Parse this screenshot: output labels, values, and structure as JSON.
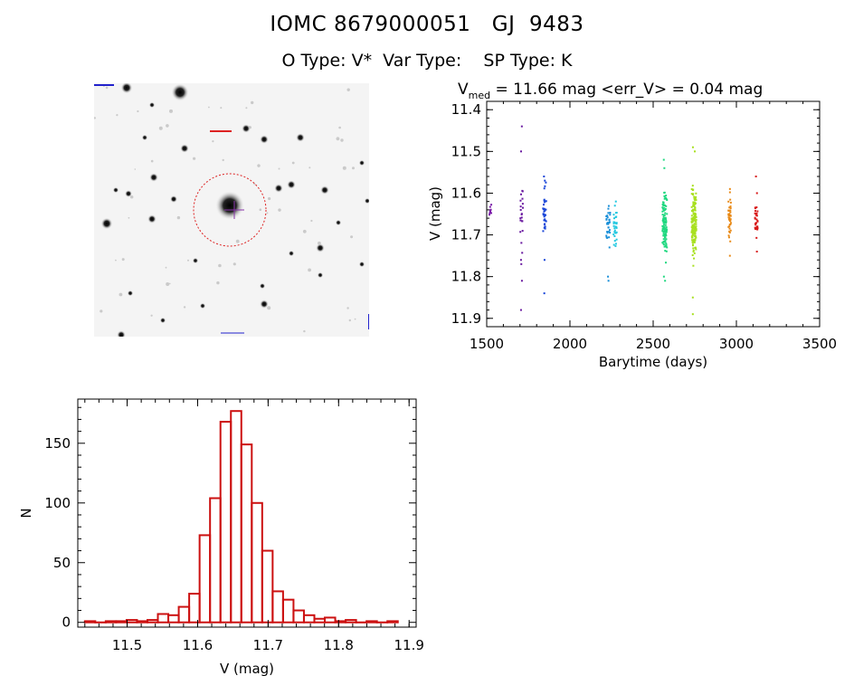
{
  "header": {
    "title": "IOMC 8679000051   GJ  9483",
    "subtitle": "O Type: V*  Var Type:    SP Type: K"
  },
  "colors": {
    "hist_bar": "#cc1111",
    "circle": "#dd2222",
    "marker_blue": "#2222cc"
  },
  "chart_data": [
    {
      "type": "scatter",
      "name": "light-curve",
      "title_prefix": "V",
      "title_subscript": "med",
      "title_rest": " = 11.66 mag <err_V> = 0.04 mag",
      "xlabel": "Barytime (days)",
      "ylabel": "V (mag)",
      "xlim": [
        1500,
        3500
      ],
      "ylim": [
        11.92,
        11.38
      ],
      "xticks": [
        1500,
        2000,
        2500,
        3000,
        3500
      ],
      "yticks": [
        11.4,
        11.5,
        11.6,
        11.7,
        11.8,
        11.9
      ],
      "series": [
        {
          "name": "s1",
          "x_center": 1520,
          "x_spread": 10,
          "y_center": 11.64,
          "y_sd": 0.015,
          "n": 8,
          "color": "#7a1aa8",
          "outliers": []
        },
        {
          "name": "s2",
          "x_center": 1710,
          "x_spread": 8,
          "y_center": 11.66,
          "y_sd": 0.035,
          "n": 20,
          "color": "#6a1aa0",
          "outliers": [
            11.44,
            11.5,
            11.76,
            11.77,
            11.81,
            11.88
          ]
        },
        {
          "name": "s3",
          "x_center": 1848,
          "x_spread": 10,
          "y_center": 11.64,
          "y_sd": 0.035,
          "n": 34,
          "color": "#1a46d8",
          "outliers": [
            11.56,
            11.57,
            11.76,
            11.84
          ]
        },
        {
          "name": "s4",
          "x_center": 2230,
          "x_spread": 12,
          "y_center": 11.675,
          "y_sd": 0.02,
          "n": 30,
          "color": "#1a8fd8",
          "outliers": [
            11.8,
            11.81
          ]
        },
        {
          "name": "s5",
          "x_center": 2272,
          "x_spread": 10,
          "y_center": 11.68,
          "y_sd": 0.025,
          "n": 30,
          "color": "#22c8e0",
          "outliers": [
            11.62
          ]
        },
        {
          "name": "s6",
          "x_center": 2570,
          "x_spread": 14,
          "y_center": 11.68,
          "y_sd": 0.035,
          "n": 110,
          "color": "#20d880",
          "outliers": [
            11.52,
            11.54,
            11.8,
            11.81
          ]
        },
        {
          "name": "s7",
          "x_center": 2745,
          "x_spread": 14,
          "y_center": 11.665,
          "y_sd": 0.035,
          "n": 150,
          "color": "#a8e020",
          "outliers": [
            11.49,
            11.5,
            11.85,
            11.89
          ]
        },
        {
          "name": "s8",
          "x_center": 2960,
          "x_spread": 8,
          "y_center": 11.66,
          "y_sd": 0.025,
          "n": 40,
          "color": "#e88a18",
          "outliers": [
            11.59,
            11.75
          ]
        },
        {
          "name": "s9",
          "x_center": 3120,
          "x_spread": 8,
          "y_center": 11.665,
          "y_sd": 0.02,
          "n": 30,
          "color": "#d81818",
          "outliers": [
            11.56,
            11.6,
            11.74
          ]
        }
      ]
    },
    {
      "type": "bar",
      "name": "magnitude-histogram",
      "xlabel": "V (mag)",
      "ylabel": "N",
      "xlim": [
        11.43,
        11.91
      ],
      "ylim": [
        -4,
        187
      ],
      "xticks": [
        11.5,
        11.6,
        11.7,
        11.8,
        11.9
      ],
      "yticks": [
        0,
        50,
        100,
        150
      ],
      "bin_width": 0.0148,
      "bin_start": 11.44,
      "values": [
        1,
        0,
        1,
        1,
        2,
        1,
        2,
        7,
        6,
        13,
        24,
        73,
        104,
        168,
        177,
        149,
        100,
        60,
        26,
        19,
        10,
        6,
        3,
        4,
        1,
        2,
        0,
        1,
        0,
        1
      ]
    }
  ]
}
